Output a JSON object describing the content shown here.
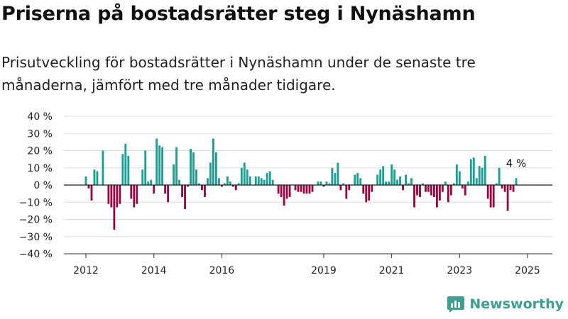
{
  "title": "Priserna på bostadsrätter steg i Nynäshamn",
  "subtitle": "Prisutveckling för bostadsrätter i Nynäshamn under de senaste tre månaderna, jämfört med tre månader tidigare.",
  "brand": {
    "name": "Newsworthy",
    "icon": "newsworthy-logo-icon"
  },
  "colors": {
    "positive": "#1b9e93",
    "negative": "#960b45",
    "grid": "#dddddd",
    "zero_line": "#222222",
    "brand": "#3f9e92"
  },
  "chart_data": {
    "type": "bar",
    "ylim": [
      -40,
      40
    ],
    "y_ticks": [
      40,
      30,
      20,
      10,
      0,
      -10,
      -20,
      -30,
      -40
    ],
    "y_tick_labels": [
      "40 %",
      "30 %",
      "20 %",
      "10 %",
      "0 %",
      "−10 %",
      "−20 %",
      "−30 %",
      "−40 %"
    ],
    "x_ticks": [
      "2012",
      "2014",
      "2016",
      "2019",
      "2021",
      "2023",
      "2025"
    ],
    "x_tick_positions": [
      2012,
      2014,
      2016,
      2019,
      2021,
      2023,
      2025
    ],
    "grid": true,
    "legend": "none",
    "unit": "%",
    "series": [
      {
        "start": [
          2012,
          1
        ],
        "step_months": 1,
        "values": [
          5,
          -2,
          -9,
          9,
          8,
          0,
          20,
          0,
          -11,
          -13,
          -26,
          -13,
          -11,
          18,
          24,
          17,
          -8,
          -13,
          -11,
          0,
          9,
          20,
          2,
          3,
          -5,
          27,
          23,
          22,
          -5,
          -10,
          0,
          12,
          22,
          3,
          -7,
          -14,
          -1,
          21,
          19,
          9,
          1,
          -3,
          -7,
          4,
          13,
          27,
          19,
          4,
          -1,
          1,
          5,
          2,
          -1,
          -3,
          1,
          10,
          13,
          9,
          5,
          0,
          5,
          5,
          4,
          3,
          7,
          8,
          3,
          0,
          -5,
          -7,
          -12,
          -8,
          -7,
          0,
          -3,
          -4,
          -4,
          -5,
          -5,
          -5,
          -4,
          0,
          2,
          2,
          -1,
          2,
          1,
          10,
          7,
          13,
          -3,
          1,
          -8,
          -3,
          0,
          6,
          7,
          4,
          -5,
          -10,
          -9,
          -4,
          0,
          6,
          9,
          11,
          2,
          2,
          12,
          9,
          3,
          5,
          -3,
          6,
          1,
          4,
          -13,
          -6,
          -7,
          1,
          -4,
          -4,
          -6,
          -7,
          -13,
          -9,
          -4,
          2,
          -10,
          -6,
          1,
          12,
          8,
          -2,
          -6,
          2,
          15,
          16,
          4,
          11,
          10,
          17,
          -8,
          -13,
          -13,
          1,
          10,
          -2,
          -4,
          -15,
          -3,
          -4,
          4
        ]
      }
    ],
    "annotation": {
      "text": "4 %",
      "target": "last"
    }
  }
}
